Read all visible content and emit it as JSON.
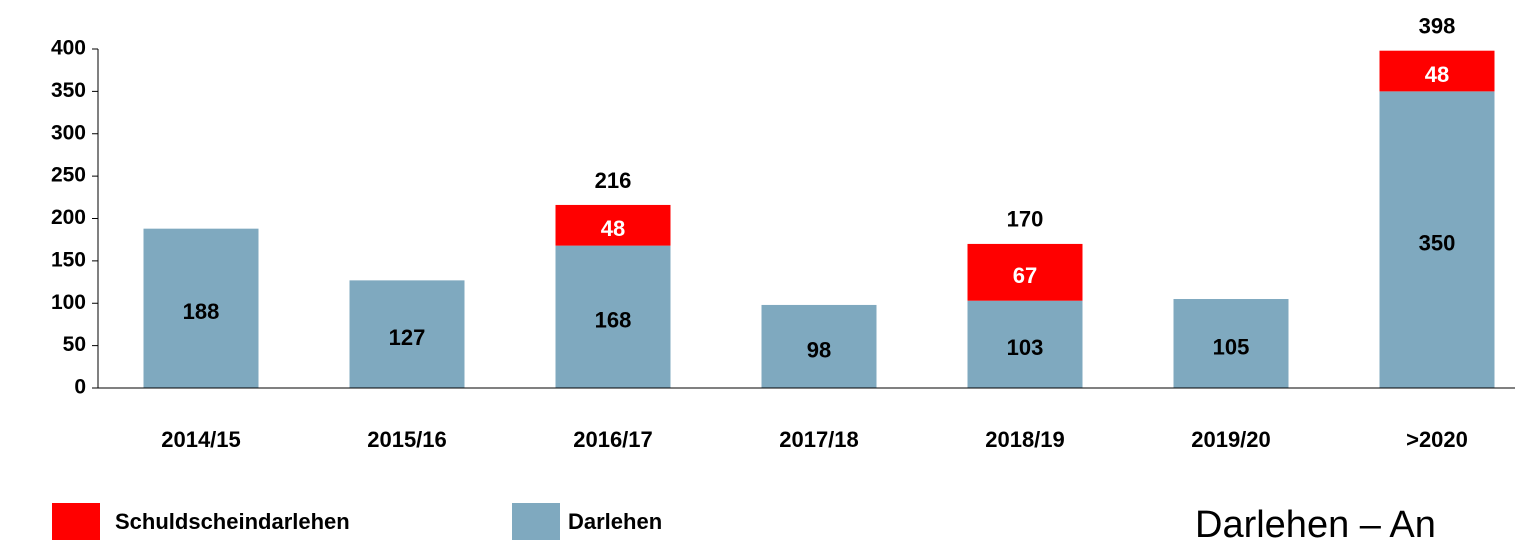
{
  "chart_data": {
    "type": "stacked_bar",
    "categories": [
      "2014/15",
      "2015/16",
      "2016/17",
      "2017/18",
      "2018/19",
      "2019/20",
      ">2020"
    ],
    "series": [
      {
        "name": "Darlehen",
        "color": "#7fa9bf",
        "values": [
          188,
          127,
          168,
          98,
          103,
          105,
          350
        ]
      },
      {
        "name": "Schuldscheindarlehen",
        "color": "#ff0000",
        "values": [
          null,
          null,
          48,
          null,
          67,
          null,
          48
        ]
      }
    ],
    "totals": [
      null,
      null,
      216,
      null,
      170,
      null,
      398
    ],
    "ylim": [
      0,
      400
    ],
    "yticks": [
      0,
      50,
      100,
      150,
      200,
      250,
      300,
      350,
      400
    ],
    "grid": false,
    "annotation": "Darlehen – An"
  }
}
